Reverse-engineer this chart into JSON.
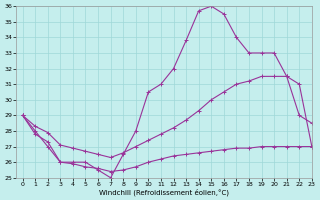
{
  "xlabel": "Windchill (Refroidissement éolien,°C)",
  "xlim": [
    -0.5,
    23
  ],
  "ylim": [
    25,
    36
  ],
  "yticks": [
    25,
    26,
    27,
    28,
    29,
    30,
    31,
    32,
    33,
    34,
    35,
    36
  ],
  "xticks": [
    0,
    1,
    2,
    3,
    4,
    5,
    6,
    7,
    8,
    9,
    10,
    11,
    12,
    13,
    14,
    15,
    16,
    17,
    18,
    19,
    20,
    21,
    22,
    23
  ],
  "bg_color": "#c5eeed",
  "line_color": "#993399",
  "grid_color": "#9fd8d8",
  "series": [
    {
      "x": [
        0,
        1,
        2,
        3,
        4,
        5,
        6,
        7,
        8,
        9,
        10,
        11,
        12,
        13,
        14,
        15,
        16,
        17,
        18,
        19,
        20,
        21,
        22,
        23
      ],
      "y": [
        29,
        28,
        27,
        26,
        26,
        26,
        25.5,
        25,
        26.5,
        28,
        30.5,
        31,
        32,
        33.8,
        35.7,
        36,
        35.5,
        34,
        33,
        33,
        33,
        31.5,
        29,
        28.5
      ]
    },
    {
      "x": [
        0,
        1,
        2,
        3,
        4,
        5,
        6,
        7,
        8,
        9,
        10,
        11,
        12,
        13,
        14,
        15,
        16,
        17,
        18,
        19,
        20,
        21,
        22,
        23
      ],
      "y": [
        29,
        28.3,
        27.9,
        27.1,
        26.9,
        26.7,
        26.5,
        26.3,
        26.6,
        27.0,
        27.4,
        27.8,
        28.2,
        28.7,
        29.3,
        30.0,
        30.5,
        31.0,
        31.2,
        31.5,
        31.5,
        31.5,
        31.0,
        27.0
      ]
    },
    {
      "x": [
        0,
        1,
        2,
        3,
        4,
        5,
        6,
        7,
        8,
        9,
        10,
        11,
        12,
        13,
        14,
        15,
        16,
        17,
        18,
        19,
        20,
        21,
        22,
        23
      ],
      "y": [
        29,
        27.8,
        27.3,
        26.0,
        25.9,
        25.7,
        25.6,
        25.4,
        25.5,
        25.7,
        26.0,
        26.2,
        26.4,
        26.5,
        26.6,
        26.7,
        26.8,
        26.9,
        26.9,
        27.0,
        27.0,
        27.0,
        27.0,
        27.0
      ]
    }
  ]
}
